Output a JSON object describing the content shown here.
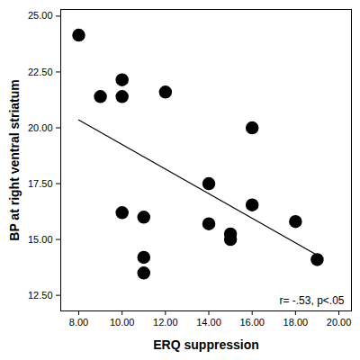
{
  "chart_data": {
    "type": "scatter",
    "x_label": "ERQ suppression",
    "y_label": "BP at right ventral striatum",
    "annotation": "r= -.53, p<.05",
    "x": [
      8,
      9,
      10,
      10,
      10,
      11,
      11,
      11,
      12,
      14,
      14,
      15,
      15,
      16,
      16,
      18,
      19
    ],
    "values": [
      24.15,
      21.4,
      22.15,
      21.4,
      16.2,
      16.0,
      14.2,
      13.5,
      21.6,
      17.5,
      15.7,
      15.25,
      15.0,
      20.0,
      16.55,
      15.8,
      14.1
    ],
    "color": "#000000",
    "marker": "circle",
    "fit_line": {
      "x": [
        8,
        19
      ],
      "values": [
        20.35,
        14.3
      ],
      "color": "#000000",
      "line_style": "solid"
    },
    "xlim": [
      7.17,
      20.58
    ],
    "ylim": [
      11.8,
      25.3
    ],
    "xticks": [
      {
        "value": 8,
        "label": "8.00"
      },
      {
        "value": 10,
        "label": "10.00"
      },
      {
        "value": 12,
        "label": "12.00"
      },
      {
        "value": 14,
        "label": "14.00"
      },
      {
        "value": 16,
        "label": "16.00"
      },
      {
        "value": 18,
        "label": "18.00"
      },
      {
        "value": 20,
        "label": "20.00"
      }
    ],
    "yticks": [
      {
        "value": 12.5,
        "label": "12.50"
      },
      {
        "value": 15,
        "label": "15.00"
      },
      {
        "value": 17.5,
        "label": "17.50"
      },
      {
        "value": 20,
        "label": "20.00"
      },
      {
        "value": 22.5,
        "label": "22.50"
      },
      {
        "value": 25,
        "label": "25.00"
      }
    ],
    "grid": false
  }
}
